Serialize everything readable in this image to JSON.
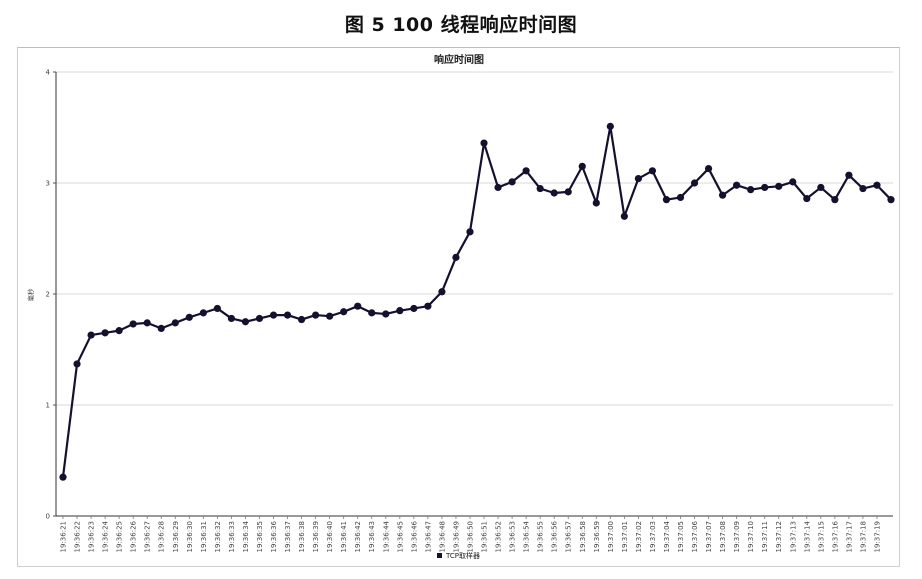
{
  "figure_caption": "图 5 100 线程响应时间图",
  "chart_data": {
    "type": "line",
    "title": "响应时间图",
    "xlabel": "",
    "ylabel": "毫秒",
    "ylim": [
      0,
      4
    ],
    "yticks": [
      0,
      1,
      2,
      3,
      4
    ],
    "grid": true,
    "legend_position": "bottom-center",
    "categories": [
      "19:36:21",
      "19:36:22",
      "19:36:23",
      "19:36:24",
      "19:36:25",
      "19:36:26",
      "19:36:27",
      "19:36:28",
      "19:36:29",
      "19:36:30",
      "19:36:31",
      "19:36:32",
      "19:36:33",
      "19:36:34",
      "19:36:35",
      "19:36:36",
      "19:36:37",
      "19:36:38",
      "19:36:39",
      "19:36:40",
      "19:36:41",
      "19:36:42",
      "19:36:43",
      "19:36:44",
      "19:36:45",
      "19:36:46",
      "19:36:47",
      "19:36:48",
      "19:36:49",
      "19:36:50",
      "19:36:51",
      "19:36:52",
      "19:36:53",
      "19:36:54",
      "19:36:55",
      "19:36:56",
      "19:36:57",
      "19:36:58",
      "19:36:59",
      "19:37:00",
      "19:37:01",
      "19:37:02",
      "19:37:03",
      "19:37:04",
      "19:37:05",
      "19:37:06",
      "19:37:07",
      "19:37:08",
      "19:37:09",
      "19:37:10",
      "19:37:11",
      "19:37:12",
      "19:37:13",
      "19:37:14",
      "19:37:15",
      "19:37:16",
      "19:37:17",
      "19:37:18",
      "19:37:19"
    ],
    "series": [
      {
        "name": "TCP取样器",
        "color": "#14112e",
        "values": [
          0.35,
          1.37,
          1.63,
          1.65,
          1.67,
          1.73,
          1.74,
          1.69,
          1.74,
          1.79,
          1.83,
          1.87,
          1.78,
          1.75,
          1.78,
          1.81,
          1.81,
          1.77,
          1.81,
          1.8,
          1.84,
          1.89,
          1.83,
          1.82,
          1.85,
          1.87,
          1.89,
          2.02,
          2.33,
          2.56,
          3.36,
          2.96,
          3.01,
          3.11,
          2.95,
          2.91,
          2.92,
          3.15,
          2.82,
          3.51,
          2.7,
          3.04,
          3.11,
          2.85,
          2.87,
          3.0,
          3.13,
          2.89,
          2.98,
          2.94,
          2.96,
          2.97,
          3.01,
          2.86,
          2.96,
          2.85,
          3.07,
          2.95,
          2.98
        ]
      }
    ],
    "extra_trailing_point": 2.85
  }
}
